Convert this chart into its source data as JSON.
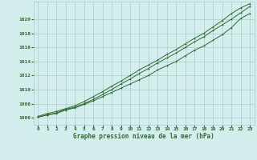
{
  "title": "Graphe pression niveau de la mer (hPa)",
  "background_color": "#d4eeee",
  "grid_color": "#aacccc",
  "line_color": "#2d6a2d",
  "xlim": [
    -0.5,
    23.5
  ],
  "ylim": [
    1005.0,
    1022.5
  ],
  "xticks": [
    0,
    1,
    2,
    3,
    4,
    5,
    6,
    7,
    8,
    9,
    10,
    11,
    12,
    13,
    14,
    15,
    16,
    17,
    18,
    19,
    20,
    21,
    22,
    23
  ],
  "yticks": [
    1006,
    1008,
    1010,
    1012,
    1014,
    1016,
    1018,
    1020
  ],
  "series": [
    [
      1006.1,
      1006.4,
      1006.6,
      1007.1,
      1007.4,
      1007.9,
      1008.4,
      1009.0,
      1009.6,
      1010.2,
      1010.8,
      1011.4,
      1012.0,
      1012.8,
      1013.4,
      1014.0,
      1014.8,
      1015.6,
      1016.2,
      1017.0,
      1017.8,
      1018.8,
      1020.1,
      1020.8
    ],
    [
      1006.1,
      1006.4,
      1006.7,
      1007.2,
      1007.5,
      1008.0,
      1008.6,
      1009.3,
      1010.0,
      1010.8,
      1011.5,
      1012.3,
      1013.0,
      1013.8,
      1014.5,
      1015.2,
      1016.0,
      1016.8,
      1017.5,
      1018.4,
      1019.2,
      1020.0,
      1020.9,
      1021.8
    ],
    [
      1006.2,
      1006.6,
      1006.9,
      1007.3,
      1007.7,
      1008.3,
      1009.0,
      1009.7,
      1010.5,
      1011.2,
      1012.0,
      1012.8,
      1013.5,
      1014.2,
      1015.0,
      1015.7,
      1016.5,
      1017.3,
      1018.0,
      1018.9,
      1019.8,
      1020.8,
      1021.6,
      1022.2
    ]
  ]
}
